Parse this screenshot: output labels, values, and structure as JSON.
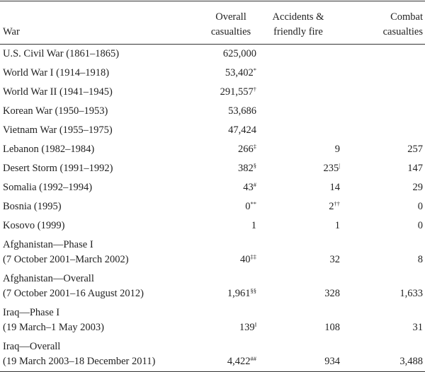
{
  "header": {
    "columns": [
      [
        "War"
      ],
      [
        "Overall",
        "casualties"
      ],
      [
        "Accidents &",
        "friendly fire"
      ],
      [
        "Combat",
        "casualties"
      ]
    ]
  },
  "rows": [
    {
      "war": "U.S. Civil War (1861–1865)",
      "overall": "625,000"
    },
    {
      "war": "World War I (1914–1918)",
      "overall": "53,402",
      "overall_note": "*"
    },
    {
      "war": "World War II (1941–1945)",
      "overall": "291,557",
      "overall_note": "†"
    },
    {
      "war": "Korean War (1950–1953)",
      "overall": "53,686"
    },
    {
      "war": "Vietnam War (1955–1975)",
      "overall": "47,424"
    },
    {
      "war": "Lebanon (1982–1984)",
      "overall": "266",
      "overall_note": "‡",
      "accidents": "9",
      "combat": "257"
    },
    {
      "war": "Desert Storm (1991–1992)",
      "overall": "382",
      "overall_note": "§",
      "accidents": "235",
      "accidents_note": "|",
      "combat": "147"
    },
    {
      "war": "Somalia (1992–1994)",
      "overall": "43",
      "overall_note": "#",
      "accidents": "14",
      "combat": "29"
    },
    {
      "war": "Bosnia (1995)",
      "overall": "0",
      "overall_note": "**",
      "accidents": "2",
      "accidents_note": "††",
      "combat": "0"
    },
    {
      "war": "Kosovo (1999)",
      "overall": "1",
      "accidents": "1",
      "combat": "0"
    },
    {
      "war": "Afghanistan—Phase I",
      "period": "(7 October 2001–March 2002)",
      "overall": "40",
      "overall_note": "‡‡",
      "accidents": "32",
      "combat": "8"
    },
    {
      "war": "Afghanistan—Overall",
      "period": "(7 October 2001–16 August 2012)",
      "overall": "1,961",
      "overall_note": "§§",
      "accidents": "328",
      "combat": "1,633"
    },
    {
      "war": "Iraq—Phase I",
      "period": "(19 March–1 May 2003)",
      "overall": "139",
      "overall_note": "‖",
      "accidents": "108",
      "combat": "31"
    },
    {
      "war": "Iraq—Overall",
      "period": "(19 March 2003–18 December 2011)",
      "overall": "4,422",
      "overall_note": "##",
      "accidents": "934",
      "combat": "3,488"
    }
  ]
}
